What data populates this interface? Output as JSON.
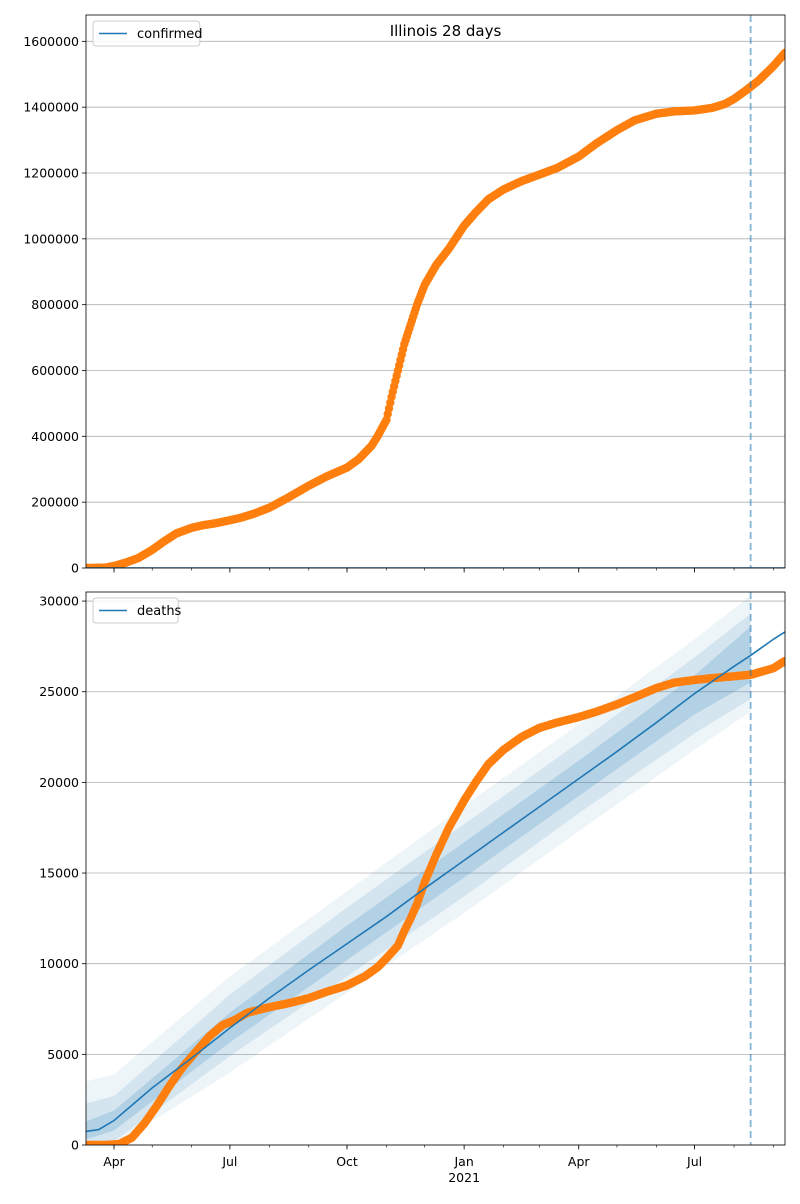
{
  "chart_data": [
    {
      "type": "line",
      "title": "Illinois 28 days",
      "xlabel": "",
      "ylabel": "",
      "legend": {
        "placement": "top-left",
        "entries": [
          "confirmed"
        ]
      },
      "grid": {
        "x": false,
        "y": true
      },
      "x_range": [
        "2020-03-10",
        "2021-09-10"
      ],
      "ylim": [
        0,
        1680000
      ],
      "x_ticks": [
        {
          "date": "2020-04-01",
          "label": "Apr"
        },
        {
          "date": "2020-07-01",
          "label": "Jul"
        },
        {
          "date": "2020-10-01",
          "label": "Oct"
        },
        {
          "date": "2021-01-01",
          "label": "Jan"
        },
        {
          "date": "2021-04-01",
          "label": "Apr"
        },
        {
          "date": "2021-07-01",
          "label": "Jul"
        }
      ],
      "y_ticks": [
        0,
        200000,
        400000,
        600000,
        800000,
        1000000,
        1200000,
        1400000,
        1600000
      ],
      "y_tick_labels": [
        "0",
        "200000",
        "400000",
        "600000",
        "800000",
        "1000000",
        "1200000",
        "1400000",
        "1600000"
      ],
      "forecast_start": "2021-08-14",
      "series": [
        {
          "name": "confirmed",
          "role": "model",
          "color": "#1f77b4",
          "points": [
            [
              "2020-03-10",
              0
            ],
            [
              "2021-09-10",
              0
            ]
          ]
        },
        {
          "role": "observed",
          "color": "#ff7f0e",
          "points": [
            [
              "2020-03-10",
              0
            ],
            [
              "2020-03-25",
              1000
            ],
            [
              "2020-04-01",
              6000
            ],
            [
              "2020-04-10",
              16000
            ],
            [
              "2020-04-20",
              30000
            ],
            [
              "2020-05-01",
              55000
            ],
            [
              "2020-05-10",
              80000
            ],
            [
              "2020-05-20",
              105000
            ],
            [
              "2020-06-01",
              122000
            ],
            [
              "2020-06-10",
              130000
            ],
            [
              "2020-06-20",
              136000
            ],
            [
              "2020-07-01",
              145000
            ],
            [
              "2020-07-10",
              153000
            ],
            [
              "2020-07-20",
              165000
            ],
            [
              "2020-08-01",
              183000
            ],
            [
              "2020-08-15",
              212000
            ],
            [
              "2020-09-01",
              250000
            ],
            [
              "2020-09-15",
              278000
            ],
            [
              "2020-10-01",
              305000
            ],
            [
              "2020-10-10",
              330000
            ],
            [
              "2020-10-20",
              370000
            ],
            [
              "2020-10-25",
              400000
            ],
            [
              "2020-11-01",
              450000
            ],
            [
              "2020-11-05",
              520000
            ],
            [
              "2020-11-10",
              600000
            ],
            [
              "2020-11-15",
              680000
            ],
            [
              "2020-11-20",
              740000
            ],
            [
              "2020-11-25",
              800000
            ],
            [
              "2020-12-01",
              860000
            ],
            [
              "2020-12-10",
              920000
            ],
            [
              "2020-12-20",
              970000
            ],
            [
              "2021-01-01",
              1040000
            ],
            [
              "2021-01-10",
              1080000
            ],
            [
              "2021-01-20",
              1120000
            ],
            [
              "2021-02-01",
              1150000
            ],
            [
              "2021-02-15",
              1175000
            ],
            [
              "2021-03-01",
              1195000
            ],
            [
              "2021-03-15",
              1215000
            ],
            [
              "2021-04-01",
              1250000
            ],
            [
              "2021-04-15",
              1290000
            ],
            [
              "2021-05-01",
              1330000
            ],
            [
              "2021-05-15",
              1360000
            ],
            [
              "2021-06-01",
              1380000
            ],
            [
              "2021-06-15",
              1387000
            ],
            [
              "2021-07-01",
              1390000
            ],
            [
              "2021-07-15",
              1398000
            ],
            [
              "2021-07-25",
              1410000
            ],
            [
              "2021-08-01",
              1425000
            ],
            [
              "2021-08-10",
              1450000
            ],
            [
              "2021-08-20",
              1480000
            ],
            [
              "2021-09-01",
              1525000
            ],
            [
              "2021-09-10",
              1565000
            ]
          ]
        }
      ]
    },
    {
      "type": "line",
      "title": "",
      "xlabel": "2021",
      "ylabel": "",
      "legend": {
        "placement": "top-left",
        "entries": [
          "deaths"
        ]
      },
      "grid": {
        "x": false,
        "y": true
      },
      "x_range": [
        "2020-03-10",
        "2021-09-10"
      ],
      "ylim": [
        0,
        30500
      ],
      "x_ticks": [
        {
          "date": "2020-04-01",
          "label": "Apr"
        },
        {
          "date": "2020-07-01",
          "label": "Jul"
        },
        {
          "date": "2020-10-01",
          "label": "Oct"
        },
        {
          "date": "2021-01-01",
          "label": "Jan"
        },
        {
          "date": "2021-04-01",
          "label": "Apr"
        },
        {
          "date": "2021-07-01",
          "label": "Jul"
        }
      ],
      "y_ticks": [
        0,
        5000,
        10000,
        15000,
        20000,
        25000,
        30000
      ],
      "y_tick_labels": [
        "0",
        "5000",
        "10000",
        "15000",
        "20000",
        "25000",
        "30000"
      ],
      "forecast_start": "2021-08-14",
      "series": [
        {
          "name": "deaths",
          "role": "model",
          "color": "#1f77b4",
          "points": [
            [
              "2020-03-10",
              750
            ],
            [
              "2020-03-20",
              850
            ],
            [
              "2020-04-01",
              1350
            ],
            [
              "2020-05-01",
              3150
            ],
            [
              "2020-06-01",
              4800
            ],
            [
              "2020-07-01",
              6450
            ],
            [
              "2020-08-01",
              8100
            ],
            [
              "2020-09-01",
              9650
            ],
            [
              "2020-10-01",
              11100
            ],
            [
              "2020-11-01",
              12600
            ],
            [
              "2020-12-01",
              14150
            ],
            [
              "2021-01-01",
              15700
            ],
            [
              "2021-02-01",
              17250
            ],
            [
              "2021-03-01",
              18650
            ],
            [
              "2021-04-01",
              20200
            ],
            [
              "2021-05-01",
              21700
            ],
            [
              "2021-06-01",
              23300
            ],
            [
              "2021-07-01",
              24900
            ],
            [
              "2021-08-01",
              26400
            ],
            [
              "2021-08-14",
              27000
            ],
            [
              "2021-09-01",
              27900
            ],
            [
              "2021-09-10",
              28300
            ]
          ],
          "bands": [
            {
              "opacity": 0.35,
              "lower": [
                [
                  "2020-03-10",
                  300
                ],
                [
                  "2020-04-01",
                  800
                ],
                [
                  "2020-07-01",
                  5650
                ],
                [
                  "2020-10-01",
                  10200
                ],
                [
                  "2021-01-01",
                  14750
                ],
                [
                  "2021-04-01",
                  19250
                ],
                [
                  "2021-07-01",
                  23750
                ],
                [
                  "2021-08-14",
                  25500
                ]
              ],
              "upper": [
                [
                  "2020-03-10",
                  1300
                ],
                [
                  "2020-04-01",
                  1900
                ],
                [
                  "2020-07-01",
                  7300
                ],
                [
                  "2020-10-01",
                  12100
                ],
                [
                  "2021-01-01",
                  16700
                ],
                [
                  "2021-04-01",
                  21200
                ],
                [
                  "2021-07-01",
                  25900
                ],
                [
                  "2021-08-14",
                  28600
                ]
              ]
            },
            {
              "opacity": 0.25,
              "lower": [
                [
                  "2020-03-10",
                  0
                ],
                [
                  "2020-04-01",
                  200
                ],
                [
                  "2020-07-01",
                  4900
                ],
                [
                  "2020-10-01",
                  9300
                ],
                [
                  "2021-01-01",
                  13700
                ],
                [
                  "2021-04-01",
                  18300
                ],
                [
                  "2021-07-01",
                  22700
                ],
                [
                  "2021-08-14",
                  24600
                ]
              ],
              "upper": [
                [
                  "2020-03-10",
                  2300
                ],
                [
                  "2020-04-01",
                  2700
                ],
                [
                  "2020-07-01",
                  8300
                ],
                [
                  "2020-10-01",
                  13100
                ],
                [
                  "2021-01-01",
                  17700
                ],
                [
                  "2021-04-01",
                  22200
                ],
                [
                  "2021-07-01",
                  26900
                ],
                [
                  "2021-08-14",
                  29300
                ]
              ]
            },
            {
              "opacity": 0.15,
              "lower": [
                [
                  "2020-03-10",
                  0
                ],
                [
                  "2020-04-01",
                  0
                ],
                [
                  "2020-07-01",
                  4000
                ],
                [
                  "2020-10-01",
                  8400
                ],
                [
                  "2021-01-01",
                  12800
                ],
                [
                  "2021-04-01",
                  17300
                ],
                [
                  "2021-07-01",
                  21800
                ],
                [
                  "2021-08-14",
                  23900
                ]
              ],
              "upper": [
                [
                  "2020-03-10",
                  3500
                ],
                [
                  "2020-04-01",
                  3900
                ],
                [
                  "2020-07-01",
                  9300
                ],
                [
                  "2020-10-01",
                  14000
                ],
                [
                  "2021-01-01",
                  18700
                ],
                [
                  "2021-04-01",
                  23200
                ],
                [
                  "2021-07-01",
                  27900
                ],
                [
                  "2021-08-14",
                  30300
                ]
              ]
            }
          ]
        },
        {
          "role": "observed",
          "color": "#ff7f0e",
          "points": [
            [
              "2020-03-10",
              0
            ],
            [
              "2020-03-25",
              0
            ],
            [
              "2020-04-05",
              50
            ],
            [
              "2020-04-15",
              400
            ],
            [
              "2020-04-25",
              1200
            ],
            [
              "2020-05-05",
              2200
            ],
            [
              "2020-05-15",
              3300
            ],
            [
              "2020-05-25",
              4300
            ],
            [
              "2020-06-05",
              5200
            ],
            [
              "2020-06-15",
              6000
            ],
            [
              "2020-06-25",
              6600
            ],
            [
              "2020-07-05",
              6900
            ],
            [
              "2020-07-15",
              7300
            ],
            [
              "2020-08-01",
              7600
            ],
            [
              "2020-08-15",
              7800
            ],
            [
              "2020-09-01",
              8100
            ],
            [
              "2020-09-15",
              8450
            ],
            [
              "2020-10-01",
              8800
            ],
            [
              "2020-10-15",
              9300
            ],
            [
              "2020-10-25",
              9800
            ],
            [
              "2020-11-01",
              10300
            ],
            [
              "2020-11-10",
              11000
            ],
            [
              "2020-11-15",
              11800
            ],
            [
              "2020-11-20",
              12500
            ],
            [
              "2020-11-25",
              13300
            ],
            [
              "2020-12-01",
              14500
            ],
            [
              "2020-12-10",
              16000
            ],
            [
              "2020-12-20",
              17500
            ],
            [
              "2021-01-01",
              19000
            ],
            [
              "2021-01-10",
              20000
            ],
            [
              "2021-01-20",
              21000
            ],
            [
              "2021-02-01",
              21800
            ],
            [
              "2021-02-15",
              22500
            ],
            [
              "2021-03-01",
              23000
            ],
            [
              "2021-03-15",
              23300
            ],
            [
              "2021-04-01",
              23600
            ],
            [
              "2021-04-15",
              23900
            ],
            [
              "2021-05-01",
              24300
            ],
            [
              "2021-05-15",
              24700
            ],
            [
              "2021-06-01",
              25200
            ],
            [
              "2021-06-15",
              25500
            ],
            [
              "2021-07-01",
              25650
            ],
            [
              "2021-07-15",
              25750
            ],
            [
              "2021-08-01",
              25850
            ],
            [
              "2021-08-15",
              25950
            ],
            [
              "2021-09-01",
              26300
            ],
            [
              "2021-09-10",
              26700
            ]
          ]
        }
      ]
    }
  ]
}
